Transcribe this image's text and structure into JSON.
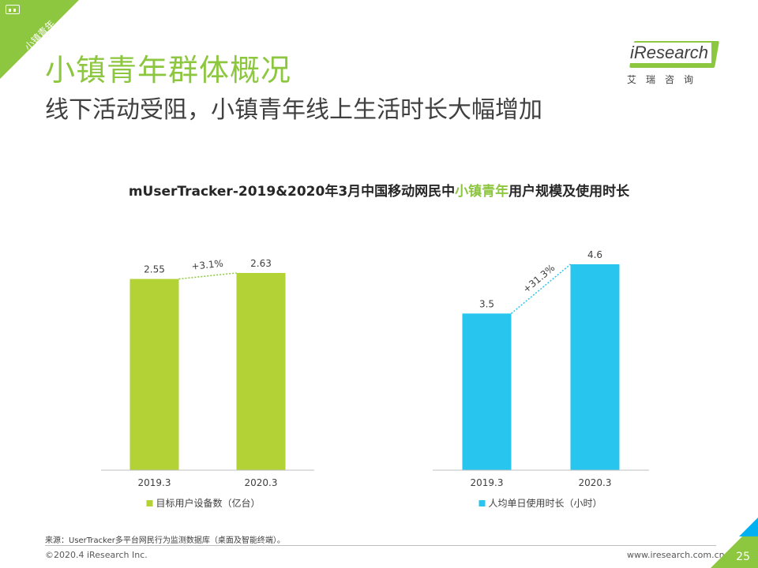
{
  "corner_tag": "小镇青年",
  "header": {
    "title": "小镇青年群体概况",
    "subtitle": "线下活动受阻，小镇青年线上生活时长大幅增加"
  },
  "logo": {
    "brand": "iResearch",
    "brand_cn": "艾瑞咨询",
    "icon": "iresearch-logo-icon"
  },
  "chart_heading": {
    "prefix": "mUserTracker-2019&2020年3月中国移动网民中",
    "highlight": "小镇青年",
    "suffix": "用户规模及使用时长"
  },
  "colors": {
    "accent_green": "#8dc63f",
    "bar_green": "#b2d235",
    "bar_blue": "#28c5ef",
    "line_green": "#8dc63f",
    "line_blue": "#28c5ef"
  },
  "chart_data": [
    {
      "type": "bar",
      "categories": [
        "2019.3",
        "2020.3"
      ],
      "series": [
        {
          "name": "目标用户设备数（亿台）",
          "values": [
            2.55,
            2.63
          ]
        }
      ],
      "value_labels": [
        "2.55",
        "2.63"
      ],
      "growth_label": "+3.1%",
      "legend_position": "bottom",
      "grid": false
    },
    {
      "type": "bar",
      "categories": [
        "2019.3",
        "2020.3"
      ],
      "series": [
        {
          "name": "人均单日使用时长（小时）",
          "values": [
            3.5,
            4.6
          ]
        }
      ],
      "value_labels": [
        "3.5",
        "4.6"
      ],
      "growth_label": "+31.3%",
      "legend_position": "bottom",
      "grid": false
    }
  ],
  "footer": {
    "source": "来源：UserTracker多平台网民行为监测数据库（桌面及智能终端）。",
    "copyright": "©2020.4 iResearch Inc.",
    "website": "www.iresearch.com.cn",
    "page_number": "25"
  }
}
